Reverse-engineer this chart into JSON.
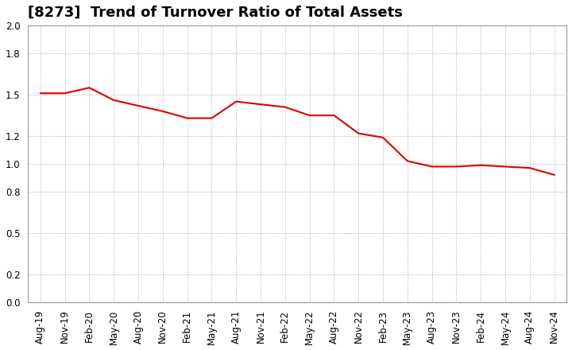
{
  "title": "[8273]  Trend of Turnover Ratio of Total Assets",
  "x_labels": [
    "Aug-19",
    "Nov-19",
    "Feb-20",
    "May-20",
    "Aug-20",
    "Nov-20",
    "Feb-21",
    "May-21",
    "Aug-21",
    "Nov-21",
    "Feb-22",
    "May-22",
    "Aug-22",
    "Nov-22",
    "Feb-23",
    "May-23",
    "Aug-23",
    "Nov-23",
    "Feb-24",
    "May-24",
    "Aug-24",
    "Nov-24"
  ],
  "y_values": [
    1.51,
    1.51,
    1.55,
    1.46,
    1.42,
    1.38,
    1.33,
    1.33,
    1.45,
    1.43,
    1.41,
    1.35,
    1.35,
    1.22,
    1.19,
    1.02,
    0.98,
    0.98,
    0.99,
    0.98,
    0.97,
    0.92
  ],
  "line_color": "#dd0000",
  "background_color": "#ffffff",
  "plot_background_color": "#ffffff",
  "grid_color": "#999999",
  "ylim": [
    0.0,
    2.0
  ],
  "yticks": [
    0.0,
    0.2,
    0.5,
    0.8,
    1.0,
    1.2,
    1.5,
    1.8,
    2.0
  ],
  "title_fontsize": 13,
  "tick_fontsize": 8.5
}
